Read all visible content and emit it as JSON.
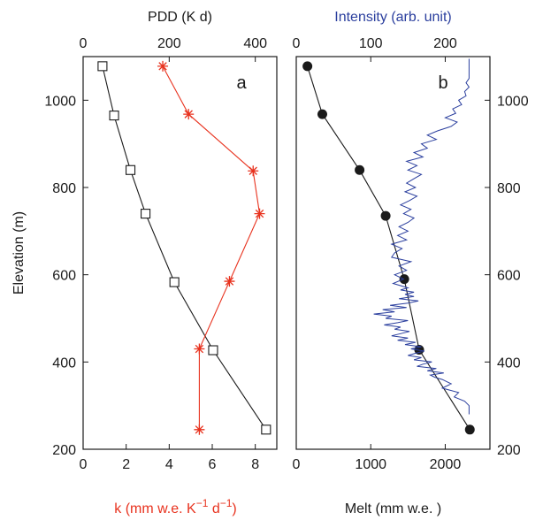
{
  "colors": {
    "black": "#1a1a1a",
    "red": "#e8321e",
    "blue": "#2b3f9e"
  },
  "chart_data": [
    {
      "panel_label": "a",
      "type": "line",
      "ylabel": "Elevation (m)",
      "ylim": [
        200,
        1100
      ],
      "yticks": [
        "200",
        "400",
        "600",
        "800",
        "1000"
      ],
      "top_axis": {
        "label": "PDD (K d)",
        "lim": [
          0,
          450
        ],
        "ticks": [
          "0",
          "200",
          "400"
        ]
      },
      "bottom_axis": {
        "label_main": "k  (mm w.e. K",
        "label_sup1": "−1",
        "label_mid": " d",
        "label_sup2": "−1",
        "label_end": ")",
        "lim": [
          0,
          9
        ],
        "ticks": [
          "0",
          "2",
          "4",
          "6",
          "8"
        ]
      },
      "series": [
        {
          "axis": "top",
          "marker": "square",
          "color": "#1a1a1a",
          "x": [
            45,
            72,
            110,
            145,
            212,
            302,
            425
          ],
          "y": [
            1078,
            965,
            840,
            740,
            583,
            427,
            245
          ]
        },
        {
          "axis": "bottom",
          "marker": "star",
          "color": "#e8321e",
          "x": [
            3.7,
            4.9,
            7.9,
            8.2,
            6.8,
            5.4,
            5.4
          ],
          "y": [
            1078,
            968,
            838,
            740,
            585,
            430,
            245
          ]
        }
      ]
    },
    {
      "panel_label": "b",
      "type": "line",
      "ylim": [
        200,
        1100
      ],
      "yticks": [
        "200",
        "400",
        "600",
        "800",
        "1000"
      ],
      "top_axis": {
        "label": "Intensity (arb. unit)",
        "lim": [
          0,
          260
        ],
        "ticks": [
          "0",
          "100",
          "200"
        ]
      },
      "bottom_axis": {
        "label": "Melt (mm w.e.  )",
        "lim": [
          0,
          2600
        ],
        "ticks": [
          "0",
          "1000",
          "2000"
        ]
      },
      "series": [
        {
          "axis": "bottom",
          "marker": "circle",
          "color": "#1a1a1a",
          "x": [
            150,
            350,
            850,
            1200,
            1450,
            1650,
            2330
          ],
          "y": [
            1078,
            968,
            840,
            735,
            590,
            428,
            245
          ]
        },
        {
          "axis": "top",
          "marker": "none",
          "color": "#2b3f9e",
          "x": [
            232,
            232,
            232,
            232,
            232,
            228,
            232,
            226,
            228,
            218,
            222,
            210,
            214,
            200,
            216,
            208,
            190,
            176,
            188,
            168,
            176,
            158,
            170,
            148,
            162,
            150,
            168,
            158,
            148,
            160,
            146,
            162,
            152,
            140,
            154,
            144,
            158,
            150,
            138,
            150,
            136,
            148,
            128,
            142,
            132,
            128,
            154,
            138,
            148,
            132,
            144,
            130,
            150,
            140,
            158,
            146,
            158,
            138,
            164,
            150,
            126,
            148,
            116,
            132,
            104,
            128,
            120,
            150,
            136,
            118,
            140,
            132,
            152,
            140,
            128,
            150,
            136,
            160,
            146,
            168,
            154,
            172,
            160,
            150,
            168,
            158,
            182,
            170,
            162,
            188,
            176,
            198,
            180,
            186,
            196,
            208,
            196,
            218,
            212,
            226,
            232,
            232,
            232
          ],
          "y": [
            1095,
            1080,
            1070,
            1060,
            1050,
            1040,
            1030,
            1020,
            1010,
            1000,
            990,
            980,
            970,
            960,
            950,
            940,
            930,
            920,
            910,
            900,
            890,
            880,
            870,
            860,
            850,
            840,
            830,
            820,
            810,
            800,
            790,
            780,
            770,
            760,
            750,
            740,
            730,
            720,
            710,
            700,
            690,
            680,
            670,
            660,
            650,
            640,
            630,
            620,
            610,
            600,
            590,
            580,
            570,
            565,
            560,
            555,
            550,
            545,
            540,
            535,
            530,
            525,
            520,
            515,
            510,
            505,
            500,
            495,
            490,
            485,
            480,
            475,
            470,
            465,
            460,
            455,
            450,
            445,
            440,
            435,
            430,
            425,
            420,
            415,
            410,
            405,
            400,
            395,
            390,
            385,
            380,
            375,
            370,
            365,
            360,
            350,
            340,
            330,
            320,
            310,
            300,
            290,
            280
          ]
        }
      ]
    }
  ]
}
